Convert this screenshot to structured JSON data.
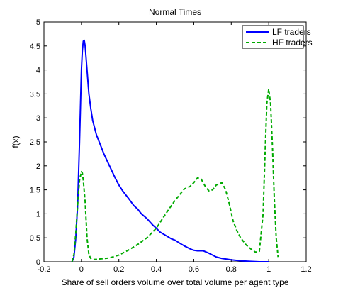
{
  "chart_data": {
    "type": "line",
    "title": "Normal Times",
    "xlabel": "Share of sell orders volume over total volume per agent type",
    "ylabel": "f(x)",
    "xlim": [
      -0.2,
      1.2
    ],
    "ylim": [
      0,
      5
    ],
    "xticks": [
      "-0.2",
      "0",
      "0.2",
      "0.4",
      "0.6",
      "0.8",
      "1",
      "1.2"
    ],
    "yticks": [
      "0",
      "0.5",
      "1",
      "1.5",
      "2",
      "2.5",
      "3",
      "3.5",
      "4",
      "4.5",
      "5"
    ],
    "grid": false,
    "legend_position": "top-right",
    "series": [
      {
        "name": "LF traders",
        "color": "#0000ff",
        "style": "solid",
        "x": [
          -0.05,
          -0.04,
          -0.03,
          -0.02,
          -0.01,
          0.0,
          0.005,
          0.01,
          0.015,
          0.02,
          0.03,
          0.04,
          0.05,
          0.06,
          0.07,
          0.08,
          0.1,
          0.12,
          0.15,
          0.18,
          0.2,
          0.22,
          0.25,
          0.28,
          0.3,
          0.32,
          0.35,
          0.38,
          0.4,
          0.42,
          0.45,
          0.48,
          0.5,
          0.52,
          0.55,
          0.58,
          0.6,
          0.62,
          0.65,
          0.68,
          0.7,
          0.72,
          0.75,
          0.8,
          0.85,
          0.9,
          0.95,
          1.0
        ],
        "y": [
          0.0,
          0.1,
          0.5,
          1.2,
          2.5,
          4.0,
          4.4,
          4.6,
          4.62,
          4.5,
          4.0,
          3.5,
          3.2,
          2.95,
          2.8,
          2.65,
          2.45,
          2.25,
          2.0,
          1.75,
          1.6,
          1.48,
          1.33,
          1.17,
          1.1,
          1.0,
          0.9,
          0.77,
          0.7,
          0.62,
          0.55,
          0.48,
          0.45,
          0.4,
          0.33,
          0.27,
          0.24,
          0.23,
          0.23,
          0.18,
          0.14,
          0.1,
          0.07,
          0.04,
          0.02,
          0.01,
          0.0,
          0.0
        ]
      },
      {
        "name": "HF traders",
        "color": "#00aa00",
        "style": "dashed",
        "x": [
          -0.05,
          -0.04,
          -0.03,
          -0.02,
          -0.01,
          0.0,
          0.005,
          0.01,
          0.02,
          0.03,
          0.04,
          0.05,
          0.06,
          0.08,
          0.1,
          0.15,
          0.2,
          0.25,
          0.3,
          0.35,
          0.4,
          0.45,
          0.5,
          0.55,
          0.58,
          0.6,
          0.62,
          0.64,
          0.66,
          0.68,
          0.7,
          0.72,
          0.75,
          0.77,
          0.79,
          0.81,
          0.83,
          0.85,
          0.88,
          0.91,
          0.93,
          0.95,
          0.97,
          0.98,
          0.99,
          1.0,
          1.01,
          1.02,
          1.03,
          1.04,
          1.05
        ],
        "y": [
          0.0,
          0.15,
          0.6,
          1.2,
          1.7,
          1.88,
          1.85,
          1.7,
          1.25,
          0.5,
          0.15,
          0.07,
          0.05,
          0.05,
          0.06,
          0.08,
          0.14,
          0.24,
          0.36,
          0.5,
          0.7,
          1.0,
          1.28,
          1.52,
          1.57,
          1.65,
          1.75,
          1.72,
          1.58,
          1.48,
          1.5,
          1.6,
          1.65,
          1.5,
          1.2,
          0.85,
          0.65,
          0.5,
          0.35,
          0.25,
          0.2,
          0.22,
          1.0,
          2.2,
          3.3,
          3.6,
          3.3,
          2.4,
          1.3,
          0.5,
          0.1
        ]
      }
    ]
  }
}
